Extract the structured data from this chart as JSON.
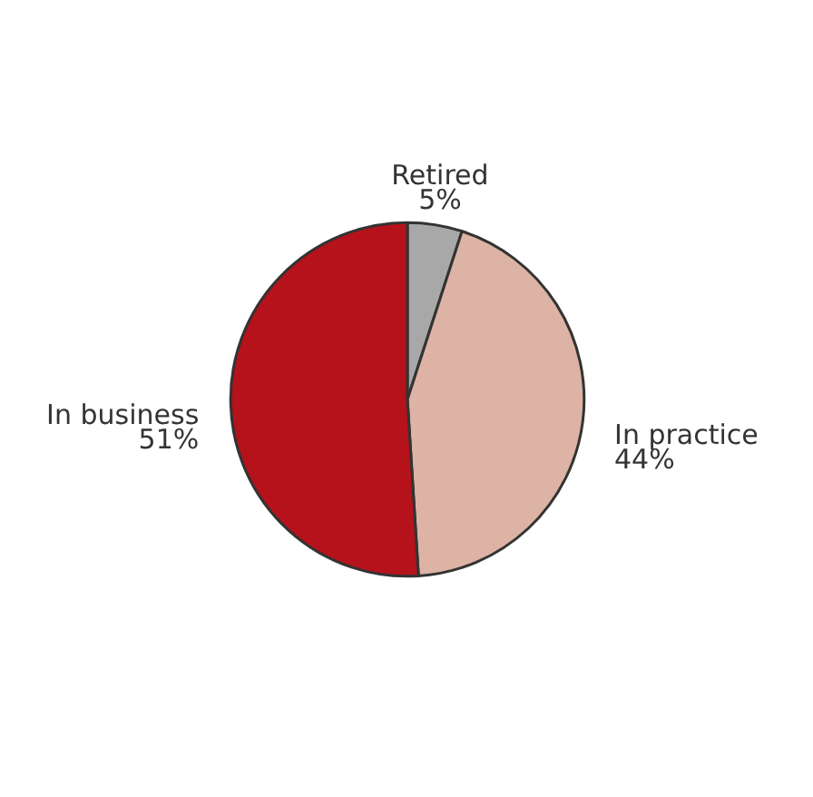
{
  "chart_data": {
    "type": "pie",
    "categories": [
      "Retired",
      "In practice",
      "In business"
    ],
    "values": [
      5,
      44,
      51
    ],
    "value_labels": [
      "5%",
      "44%",
      "51%"
    ],
    "colors": [
      "#a8a8a8",
      "#dcb3a4",
      "#b5121b"
    ]
  }
}
